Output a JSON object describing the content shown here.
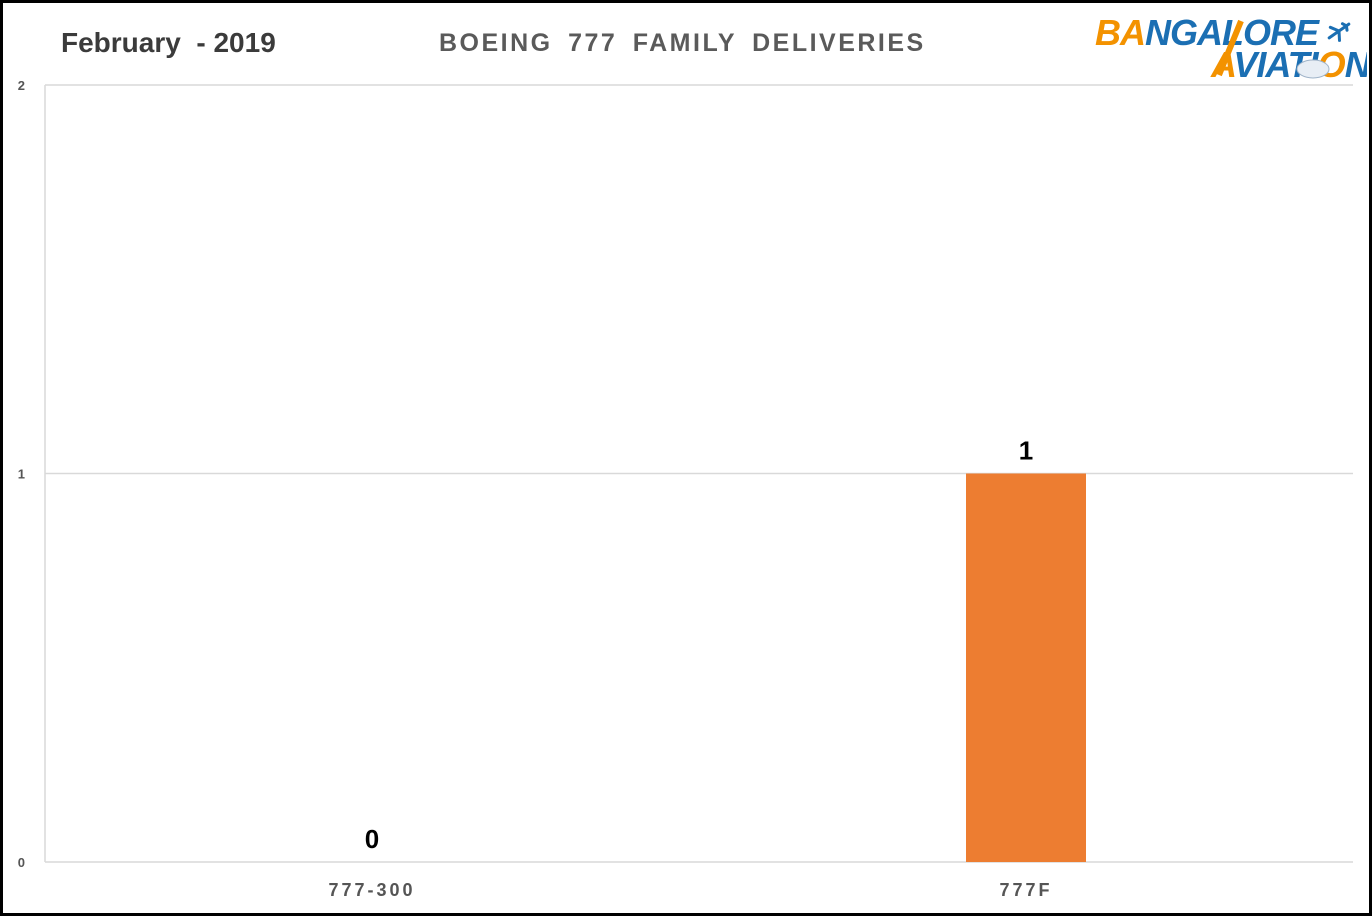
{
  "header": {
    "period": "February  - 2019",
    "logo": {
      "line1": "BANGALORE",
      "line2": "AVIATION",
      "icon": "airplane-icon"
    }
  },
  "chart_data": {
    "type": "bar",
    "title": "BOEING 777 FAMILY DELIVERIES",
    "categories": [
      "777-300",
      "777F"
    ],
    "values": [
      0,
      1
    ],
    "data_labels": [
      "0",
      "1"
    ],
    "ylim": [
      0,
      2
    ],
    "yticks": [
      "0",
      "1",
      "2"
    ],
    "xlabel": "",
    "ylabel": "",
    "grid": true,
    "bar_color": "#ED7D31",
    "grid_color": "#D9D9D9"
  }
}
